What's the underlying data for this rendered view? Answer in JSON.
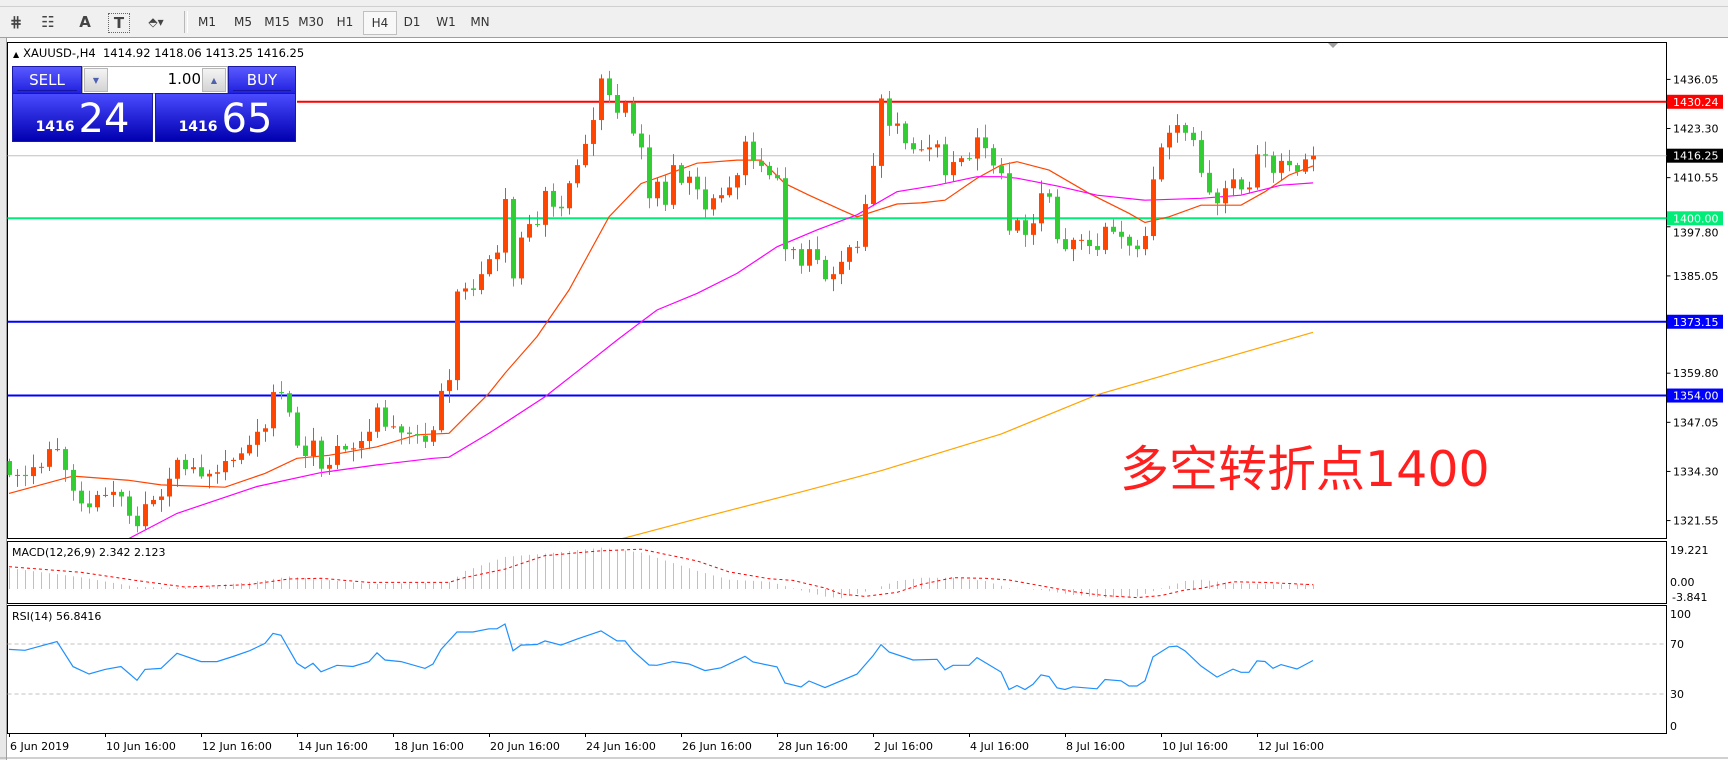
{
  "toolbar": {
    "tools": [
      {
        "icon": "period-separators-icon",
        "glyph": "⋕"
      },
      {
        "icon": "fibonacci-icon",
        "glyph": "☷"
      },
      {
        "icon": "text-icon",
        "glyph": "A"
      },
      {
        "icon": "text-label-icon",
        "glyph": "T"
      },
      {
        "icon": "arrows-dropdown-icon",
        "glyph": "⬘▾"
      }
    ],
    "timeframes": [
      "M1",
      "M5",
      "M15",
      "M30",
      "H1",
      "H4",
      "D1",
      "W1",
      "MN"
    ],
    "active_timeframe": "H4"
  },
  "chart": {
    "symbol": "XAUUSD-,H4",
    "ohlc_text": "1414.92 1418.06 1413.25 1416.25"
  },
  "trade_panel": {
    "sell_label": "SELL",
    "buy_label": "BUY",
    "lot": "1.00",
    "sell_big": "1416",
    "sell_pips": "24",
    "buy_big": "1416",
    "buy_pips": "65",
    "color": "#2a2af0"
  },
  "annotation": "多空转折点1400",
  "indicators": {
    "macd_label": "MACD(12,26,9) 2.342 2.123",
    "rsi_label": "RSI(14) 56.8416"
  },
  "chart_data": {
    "type": "candlestick",
    "symbol": "XAUUSD-",
    "timeframe": "H4",
    "first_open": 1337.0,
    "close": [
      1333.4,
      1333.4,
      1333.1,
      1335.4,
      1335.5,
      1340.1,
      1340.1,
      1334.7,
      1329.3,
      1326,
      1325,
      1328.2,
      1328.2,
      1329,
      1327.8,
      1322.8,
      1320.1,
      1325.8,
      1326.9,
      1327.8,
      1332.4,
      1337.3,
      1334.9,
      1335.4,
      1333,
      1333.7,
      1334.1,
      1337,
      1337.3,
      1339,
      1341.2,
      1344.6,
      1345.5,
      1354.9,
      1354.6,
      1349.6,
      1341,
      1338.3,
      1342.3,
      1335,
      1336,
      1340.9,
      1340,
      1340.3,
      1342.2,
      1344.6,
      1350.9,
      1345.9,
      1346,
      1344.4,
      1344,
      1343.6,
      1342,
      1345,
      1355.2,
      1358,
      1381,
      1381.8,
      1381.4,
      1385.5,
      1389.4,
      1391.1,
      1405,
      1384.4,
      1395,
      1398.5,
      1398.3,
      1407.1,
      1403,
      1402.6,
      1409.1,
      1413.8,
      1419.3,
      1425.5,
      1436.3,
      1432,
      1427.4,
      1430,
      1422,
      1418.4,
      1405.2,
      1409.5,
      1403.5,
      1413.8,
      1409.2,
      1410.8,
      1407.5,
      1402.3,
      1405.2,
      1406,
      1408,
      1411.2,
      1419.9,
      1414.9,
      1413.6,
      1411.2,
      1410.4,
      1392,
      1392,
      1387.7,
      1392,
      1389.2,
      1384.2,
      1385.5,
      1388.7,
      1392.5,
      1392.6,
      1403.7,
      1413.6,
      1431.1,
      1424,
      1424.6,
      1419.5,
      1417.9,
      1417.9,
      1418.4,
      1419.2,
      1411.2,
      1414.6,
      1415.6,
      1415.5,
      1421,
      1418.2,
      1413.7,
      1411.7,
      1396.8,
      1399.5,
      1395.7,
      1398.7,
      1406.5,
      1405.6,
      1394.6,
      1392,
      1394.4,
      1394.4,
      1392.8,
      1391.8,
      1397.8,
      1396.5,
      1395.2,
      1392.9,
      1392,
      1395.4,
      1410.1,
      1418.4,
      1422.2,
      1424.2,
      1422.2,
      1420.3,
      1411.8,
      1406.7,
      1403.9,
      1407.8,
      1410.1,
      1407.5,
      1408,
      1416.6,
      1416.3,
      1411.8,
      1414.9,
      1413.8,
      1412.1,
      1415.3,
      1416.25
    ],
    "bull_color": "#ff4500",
    "bear_color": "#32cd32",
    "moving_averages": [
      {
        "color": "#ff4500",
        "points": [
          [
            0,
            1328.6
          ],
          [
            8,
            1333.1
          ],
          [
            15,
            1332
          ],
          [
            19,
            1330.8
          ],
          [
            27,
            1330.2
          ],
          [
            32,
            1333.8
          ],
          [
            36,
            1337.7
          ],
          [
            40,
            1338.5
          ],
          [
            46,
            1340.7
          ],
          [
            51,
            1343.8
          ],
          [
            55,
            1344.2
          ],
          [
            60,
            1354.6
          ],
          [
            62,
            1359.8
          ],
          [
            66,
            1369.3
          ],
          [
            70,
            1381.4
          ],
          [
            75,
            1400.4
          ],
          [
            79,
            1409
          ],
          [
            82,
            1411.2
          ],
          [
            86,
            1414.3
          ],
          [
            91,
            1415.1
          ],
          [
            94,
            1415.1
          ],
          [
            97,
            1409
          ],
          [
            100,
            1406
          ],
          [
            104,
            1402.2
          ],
          [
            106,
            1400.4
          ],
          [
            111,
            1403.7
          ],
          [
            114,
            1404
          ],
          [
            117,
            1404.7
          ],
          [
            121,
            1410.4
          ],
          [
            124,
            1413.8
          ],
          [
            126,
            1414.7
          ],
          [
            130,
            1412.5
          ],
          [
            135,
            1406.5
          ],
          [
            140,
            1401.3
          ],
          [
            142,
            1398.9
          ],
          [
            145,
            1400.4
          ],
          [
            149,
            1403.4
          ],
          [
            154,
            1403.4
          ],
          [
            157,
            1406.9
          ],
          [
            160,
            1411.2
          ],
          [
            163,
            1413.6
          ]
        ]
      },
      {
        "color": "#ff00ff",
        "points": [
          [
            15,
            1316.9
          ],
          [
            21,
            1323.4
          ],
          [
            31,
            1330.4
          ],
          [
            39,
            1334
          ],
          [
            46,
            1336
          ],
          [
            53,
            1337.7
          ],
          [
            55,
            1338
          ],
          [
            60,
            1344.2
          ],
          [
            67,
            1353.7
          ],
          [
            71,
            1360.2
          ],
          [
            76,
            1368.4
          ],
          [
            81,
            1376.2
          ],
          [
            86,
            1380.5
          ],
          [
            91,
            1385.7
          ],
          [
            96,
            1392.6
          ],
          [
            101,
            1397
          ],
          [
            106,
            1400.9
          ],
          [
            111,
            1406.9
          ],
          [
            116,
            1408.6
          ],
          [
            121,
            1410.8
          ],
          [
            124,
            1410.8
          ],
          [
            126,
            1410.4
          ],
          [
            131,
            1408.4
          ],
          [
            136,
            1406
          ],
          [
            142,
            1404.7
          ],
          [
            149,
            1405.2
          ],
          [
            154,
            1406
          ],
          [
            159,
            1408.6
          ],
          [
            163,
            1409.2
          ]
        ]
      },
      {
        "color": "#ffa500",
        "points": [
          [
            76,
            1316.5
          ],
          [
            86,
            1322
          ],
          [
            99,
            1329
          ],
          [
            109,
            1334.5
          ],
          [
            124,
            1344
          ],
          [
            136,
            1354.2
          ],
          [
            149,
            1362
          ],
          [
            163,
            1370.4
          ]
        ]
      }
    ],
    "horizontal_lines": [
      {
        "price": "1430.24",
        "color": "#ff0000"
      },
      {
        "price": "1416.25",
        "color": "#c0c0c0",
        "label_bg": "#000000"
      },
      {
        "price": "1400.00",
        "color": "#00ee77"
      },
      {
        "price": "1373.15",
        "color": "#0000ff"
      },
      {
        "price": "1354.00",
        "color": "#0000ff"
      }
    ],
    "y_ticks": [
      "1436.05",
      "1423.30",
      "1410.55",
      "1397.80",
      "1385.05",
      "1359.80",
      "1347.05",
      "1334.30",
      "1321.55"
    ],
    "ylim": [
      1317.0,
      1445.0
    ],
    "x_ticks": [
      {
        "bar": 0,
        "label": "6 Jun 2019"
      },
      {
        "bar": 12,
        "label": "10 Jun 16:00"
      },
      {
        "bar": 24,
        "label": "12 Jun 16:00"
      },
      {
        "bar": 36,
        "label": "14 Jun 16:00"
      },
      {
        "bar": 48,
        "label": "18 Jun 16:00"
      },
      {
        "bar": 60,
        "label": "20 Jun 16:00"
      },
      {
        "bar": 72,
        "label": "24 Jun 16:00"
      },
      {
        "bar": 84,
        "label": "26 Jun 16:00"
      },
      {
        "bar": 96,
        "label": "28 Jun 16:00"
      },
      {
        "bar": 108,
        "label": "2 Jul 16:00"
      },
      {
        "bar": 120,
        "label": "4 Jul 16:00"
      },
      {
        "bar": 132,
        "label": "8 Jul 16:00"
      },
      {
        "bar": 144,
        "label": "10 Jul 16:00"
      },
      {
        "bar": 156,
        "label": "12 Jul 16:00"
      }
    ],
    "macd": {
      "params": "12,26,9",
      "histogram_color": "#c0c0c0",
      "signal_color": "#ff0000",
      "y_ticks": [
        "19.221",
        "0.00",
        "-3.841"
      ],
      "histogram": [
        [
          0,
          10.4
        ],
        [
          9,
          5.8
        ],
        [
          16,
          1
        ],
        [
          22,
          0.6
        ],
        [
          30,
          3.3
        ],
        [
          35,
          6.2
        ],
        [
          39,
          4.8
        ],
        [
          45,
          2.4
        ],
        [
          55,
          3.3
        ],
        [
          57,
          9
        ],
        [
          62,
          16
        ],
        [
          67,
          17.6
        ],
        [
          74,
          20.6
        ],
        [
          79,
          18.1
        ],
        [
          86,
          9
        ],
        [
          90,
          4.6
        ],
        [
          95,
          3.7
        ],
        [
          98,
          0.3
        ],
        [
          102,
          -3.8
        ],
        [
          104,
          -4.6
        ],
        [
          107,
          -1.3
        ],
        [
          111,
          4
        ],
        [
          114,
          5.6
        ],
        [
          118,
          5.6
        ],
        [
          122,
          4
        ],
        [
          125,
          0.3
        ],
        [
          129,
          -0.5
        ],
        [
          133,
          -3
        ],
        [
          137,
          -4.3
        ],
        [
          141,
          -3.8
        ],
        [
          144,
          0.3
        ],
        [
          147,
          4
        ],
        [
          149,
          4.6
        ],
        [
          153,
          2.8
        ],
        [
          157,
          2.3
        ],
        [
          163,
          2.342
        ]
      ],
      "signal": [
        [
          0,
          11.1
        ],
        [
          9,
          8.3
        ],
        [
          16,
          4.2
        ],
        [
          22,
          1
        ],
        [
          30,
          2.2
        ],
        [
          35,
          5
        ],
        [
          39,
          5.3
        ],
        [
          45,
          3.3
        ],
        [
          55,
          3.3
        ],
        [
          57,
          5.7
        ],
        [
          62,
          9.9
        ],
        [
          67,
          16.6
        ],
        [
          74,
          19
        ],
        [
          79,
          19.8
        ],
        [
          86,
          14
        ],
        [
          90,
          8.5
        ],
        [
          95,
          5.1
        ],
        [
          98,
          4.3
        ],
        [
          102,
          0.5
        ],
        [
          104,
          -2.5
        ],
        [
          107,
          -3.7
        ],
        [
          111,
          -1.7
        ],
        [
          114,
          2.3
        ],
        [
          118,
          5.6
        ],
        [
          122,
          5.3
        ],
        [
          125,
          4.5
        ],
        [
          129,
          1.6
        ],
        [
          133,
          -1.3
        ],
        [
          137,
          -3.3
        ],
        [
          141,
          -4.3
        ],
        [
          144,
          -3.3
        ],
        [
          147,
          -0.5
        ],
        [
          149,
          0.3
        ],
        [
          153,
          3.6
        ],
        [
          157,
          3.3
        ],
        [
          163,
          2.123
        ]
      ]
    },
    "rsi": {
      "period": 14,
      "color": "#1e90ff",
      "levels": [
        70,
        30
      ],
      "y_ticks": [
        "100",
        "70",
        "30",
        "0"
      ],
      "points": [
        [
          0,
          65.7
        ],
        [
          2,
          65
        ],
        [
          6,
          71.9
        ],
        [
          8,
          51.9
        ],
        [
          10,
          46
        ],
        [
          12,
          49.7
        ],
        [
          14,
          52
        ],
        [
          16,
          41
        ],
        [
          17,
          49.7
        ],
        [
          19,
          50.5
        ],
        [
          21,
          62.6
        ],
        [
          24,
          55.9
        ],
        [
          26,
          55.9
        ],
        [
          28,
          60
        ],
        [
          30,
          64.4
        ],
        [
          32,
          70.5
        ],
        [
          33,
          78.5
        ],
        [
          34,
          77
        ],
        [
          36,
          54.6
        ],
        [
          37,
          50.5
        ],
        [
          38,
          54.6
        ],
        [
          39,
          47.8
        ],
        [
          41,
          53
        ],
        [
          43,
          52
        ],
        [
          45,
          55.9
        ],
        [
          46,
          63
        ],
        [
          47,
          57.2
        ],
        [
          49,
          55.9
        ],
        [
          52,
          50.5
        ],
        [
          53,
          54
        ],
        [
          54,
          65.6
        ],
        [
          56,
          79.6
        ],
        [
          58,
          79.6
        ],
        [
          60,
          82.2
        ],
        [
          61,
          82.2
        ],
        [
          62,
          86
        ],
        [
          63,
          64.6
        ],
        [
          64,
          69.1
        ],
        [
          66,
          69.6
        ],
        [
          67,
          72.5
        ],
        [
          69,
          69.1
        ],
        [
          71,
          73.9
        ],
        [
          74,
          80.5
        ],
        [
          76,
          72.5
        ],
        [
          77,
          72.5
        ],
        [
          78,
          64.6
        ],
        [
          80,
          53.2
        ],
        [
          81,
          53
        ],
        [
          83,
          55.9
        ],
        [
          85,
          54
        ],
        [
          87,
          48.7
        ],
        [
          89,
          51
        ],
        [
          92,
          60.2
        ],
        [
          93,
          55.6
        ],
        [
          96,
          51.7
        ],
        [
          97,
          38.8
        ],
        [
          99,
          35.6
        ],
        [
          100,
          40.4
        ],
        [
          102,
          35.1
        ],
        [
          106,
          45.9
        ],
        [
          108,
          60.6
        ],
        [
          109,
          69.5
        ],
        [
          110,
          63.6
        ],
        [
          113,
          57.2
        ],
        [
          116,
          57.8
        ],
        [
          117,
          49.3
        ],
        [
          118,
          53
        ],
        [
          120,
          53
        ],
        [
          121,
          59.1
        ],
        [
          124,
          47.6
        ],
        [
          125,
          33.6
        ],
        [
          126,
          36.8
        ],
        [
          127,
          33.6
        ],
        [
          128,
          37.8
        ],
        [
          129,
          45.3
        ],
        [
          130,
          44
        ],
        [
          131,
          35
        ],
        [
          132,
          33.6
        ],
        [
          133,
          35.8
        ],
        [
          136,
          34.2
        ],
        [
          137,
          41.6
        ],
        [
          139,
          40.6
        ],
        [
          140,
          36.4
        ],
        [
          141,
          36.4
        ],
        [
          142,
          40.6
        ],
        [
          143,
          59.7
        ],
        [
          145,
          67.8
        ],
        [
          146,
          68.3
        ],
        [
          147,
          64.6
        ],
        [
          149,
          52.4
        ],
        [
          151,
          43.5
        ],
        [
          153,
          49.9
        ],
        [
          154,
          47.4
        ],
        [
          155,
          47.4
        ],
        [
          156,
          56.5
        ],
        [
          157,
          56
        ],
        [
          158,
          50.6
        ],
        [
          159,
          53.5
        ],
        [
          161,
          50
        ],
        [
          163,
          56.84
        ]
      ]
    }
  }
}
